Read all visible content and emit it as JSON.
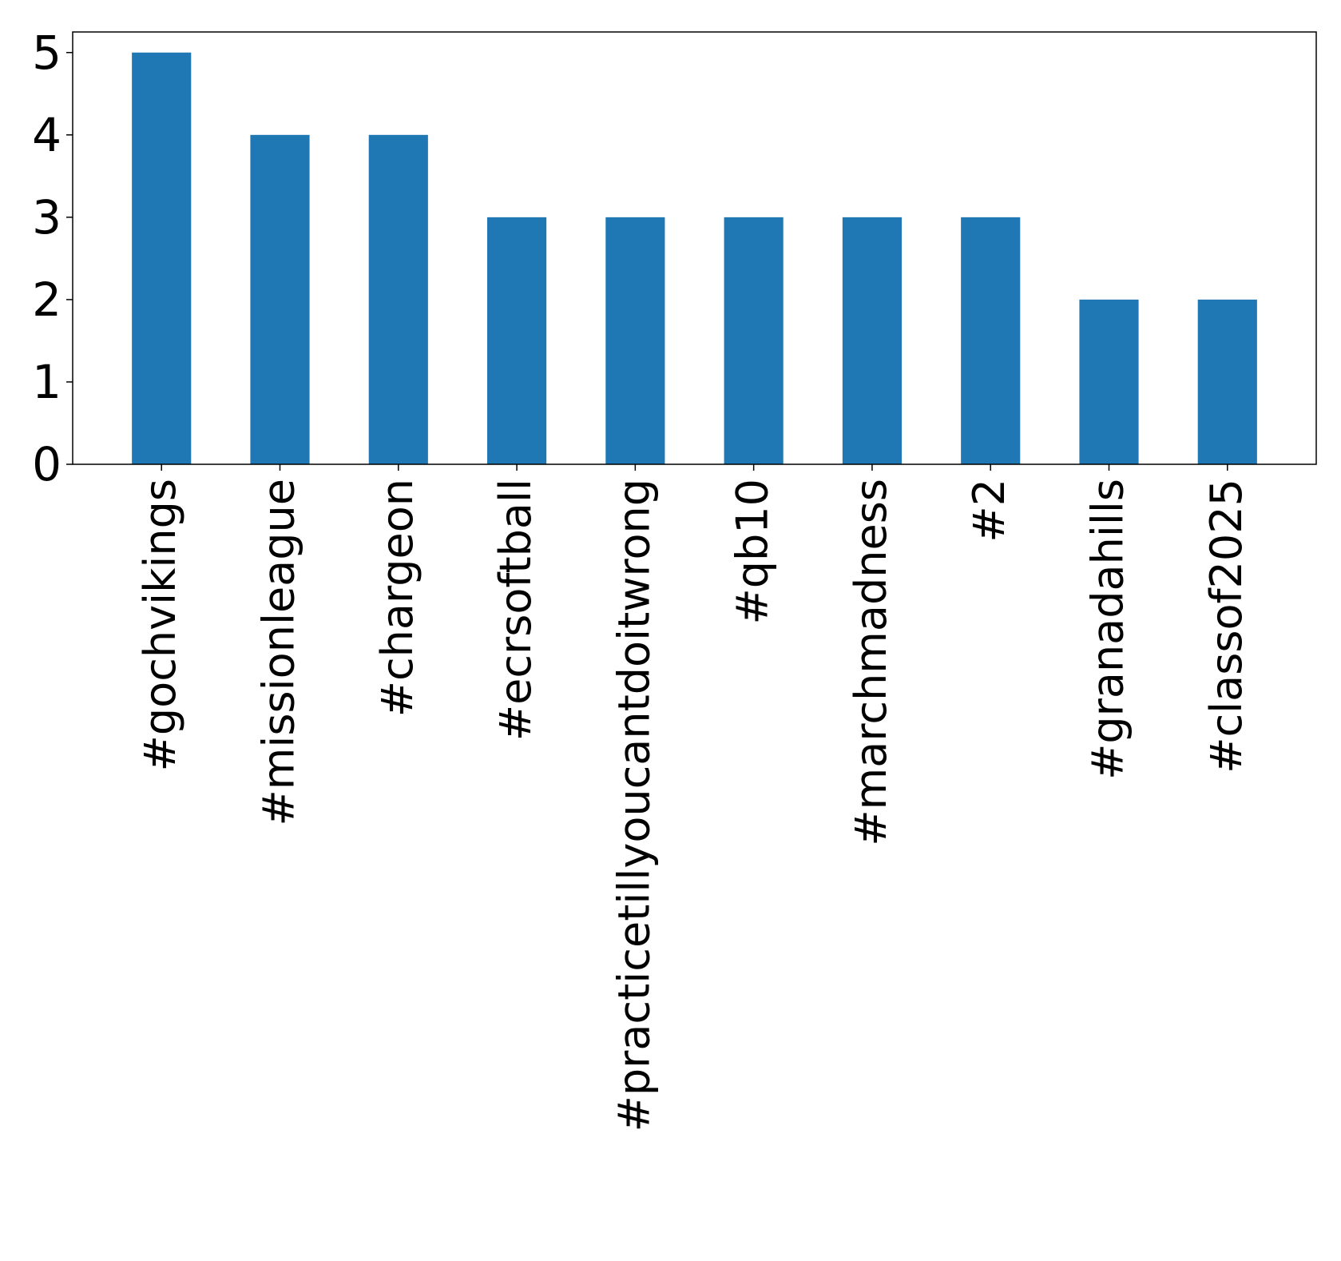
{
  "chart_data": {
    "type": "bar",
    "title": "",
    "xlabel": "",
    "ylabel": "",
    "categories": [
      "#gochvikings",
      "#missionleague",
      "#chargeon",
      "#ecrsoftball",
      "#practicetillyoucantdoitwrong",
      "#qb10",
      "#marchmadness",
      "#2",
      "#granadahills",
      "#classof2025"
    ],
    "values": [
      5,
      4,
      4,
      3,
      3,
      3,
      3,
      3,
      2,
      2
    ],
    "ylim": [
      0,
      5.25
    ],
    "yticks": [
      0,
      1,
      2,
      3,
      4,
      5
    ],
    "bar_color": "#1f77b4",
    "grid": false,
    "legend": "none"
  }
}
